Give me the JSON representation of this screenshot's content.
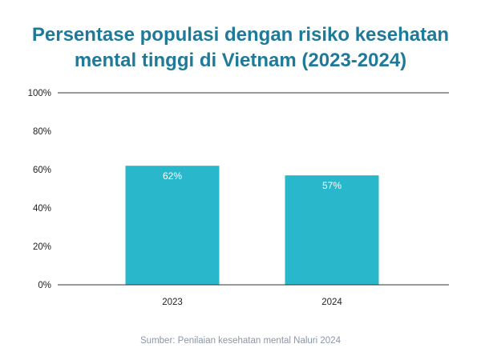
{
  "chart_data": {
    "type": "bar",
    "title_lines": [
      "Persentase populasi dengan risiko kesehatan",
      "mental tinggi di Vietnam (2023-2024)"
    ],
    "categories": [
      "2023",
      "2024"
    ],
    "values": [
      62,
      57
    ],
    "data_labels": [
      "62%",
      "57%"
    ],
    "y_ticks": [
      0,
      20,
      40,
      60,
      80,
      100
    ],
    "y_tick_labels": [
      "0%",
      "20%",
      "40%",
      "60%",
      "80%",
      "100%"
    ],
    "ylim": [
      0,
      100
    ],
    "grid": false,
    "bar_color": "#29b7cc",
    "source": "Sumber: Penilaian kesehatan mental Naluri 2024"
  },
  "colors": {
    "title": "#1f7a99",
    "axis_line": "#333333",
    "source_text": "#8a96a8"
  }
}
